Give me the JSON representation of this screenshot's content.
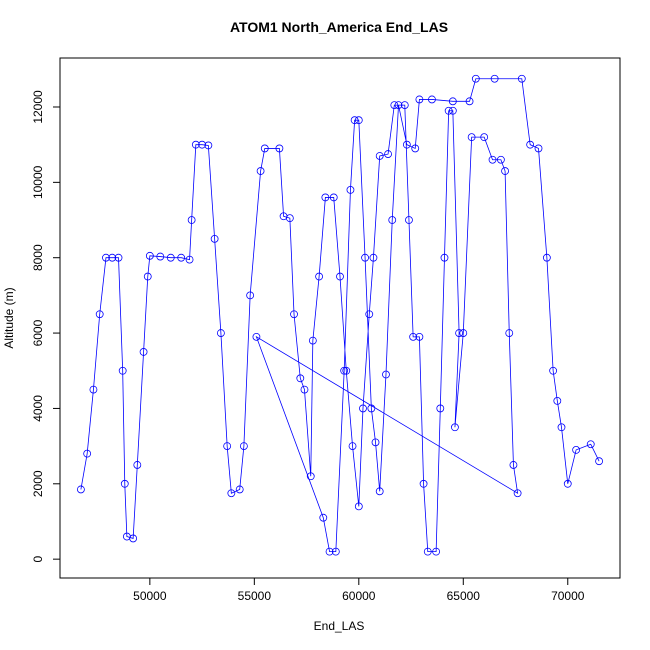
{
  "chart_data": {
    "type": "scatter",
    "title": "ATOM1 North_America End_LAS",
    "x_label": "End_LAS",
    "y_label": "Altitude (m)",
    "color": "#0000ff",
    "x": [
      46700,
      47000,
      47300,
      47600,
      47900,
      48200,
      48500,
      48700,
      48800,
      48900,
      49200,
      49400,
      49700,
      49900,
      50000,
      50500,
      51000,
      51500,
      51900,
      52000,
      52200,
      52500,
      52800,
      53100,
      53400,
      53700,
      53900,
      54300,
      54500,
      54800,
      55300,
      55500,
      56200,
      56400,
      56700,
      56900,
      57200,
      57400,
      57700,
      57800,
      58100,
      58400,
      58800,
      59100,
      59400,
      59700,
      60000,
      60200,
      60500,
      60700,
      61000,
      61400,
      61700,
      62200,
      62400,
      62600,
      62900,
      63100,
      63300,
      63700,
      63900,
      64100,
      64300,
      64500,
      64800,
      64600,
      65000,
      65400,
      66000,
      66400,
      66800,
      67000,
      67200,
      67400,
      67600,
      55100,
      58300,
      58600,
      58900,
      59300,
      59600,
      59800,
      60000,
      60300,
      60600,
      60800,
      61000,
      61300,
      61600,
      61900,
      62300,
      62700,
      62900,
      63500,
      64500,
      65300,
      65600,
      66500,
      67800,
      68200,
      68600,
      69000,
      69300,
      69500,
      69700,
      70000,
      70400,
      71100,
      71500
    ],
    "y": [
      1850,
      2800,
      4500,
      6500,
      8000,
      8000,
      8000,
      5000,
      2000,
      600,
      550,
      2500,
      5500,
      7500,
      8050,
      8030,
      8000,
      8000,
      7950,
      9000,
      11000,
      11000,
      10980,
      8500,
      6000,
      3000,
      1750,
      1850,
      3000,
      7000,
      10300,
      10900,
      10900,
      9100,
      9050,
      6500,
      4800,
      4500,
      2200,
      5800,
      7500,
      9600,
      9600,
      7500,
      5000,
      3000,
      1400,
      4000,
      6500,
      8000,
      10700,
      10750,
      12050,
      12050,
      9000,
      5900,
      5900,
      2000,
      200,
      200,
      4000,
      8000,
      11900,
      11900,
      6000,
      3500,
      6000,
      11200,
      11200,
      10600,
      10600,
      10300,
      6000,
      2500,
      1750,
      5900,
      1100,
      200,
      200,
      5000,
      9800,
      11650,
      11650,
      8000,
      4000,
      3100,
      1800,
      4900,
      9000,
      12050,
      11000,
      10900,
      12200,
      12200,
      12150,
      12150,
      12750,
      12750,
      12750,
      11000,
      10900,
      8000,
      5000,
      4200,
      3500,
      2000,
      2900,
      3050,
      2600
    ],
    "xlim": [
      45700,
      72500
    ],
    "ylim": [
      -500,
      13300
    ],
    "xticks": [
      50000,
      55000,
      60000,
      65000,
      70000
    ],
    "yticks": [
      0,
      2000,
      4000,
      6000,
      8000,
      10000,
      12000
    ]
  }
}
